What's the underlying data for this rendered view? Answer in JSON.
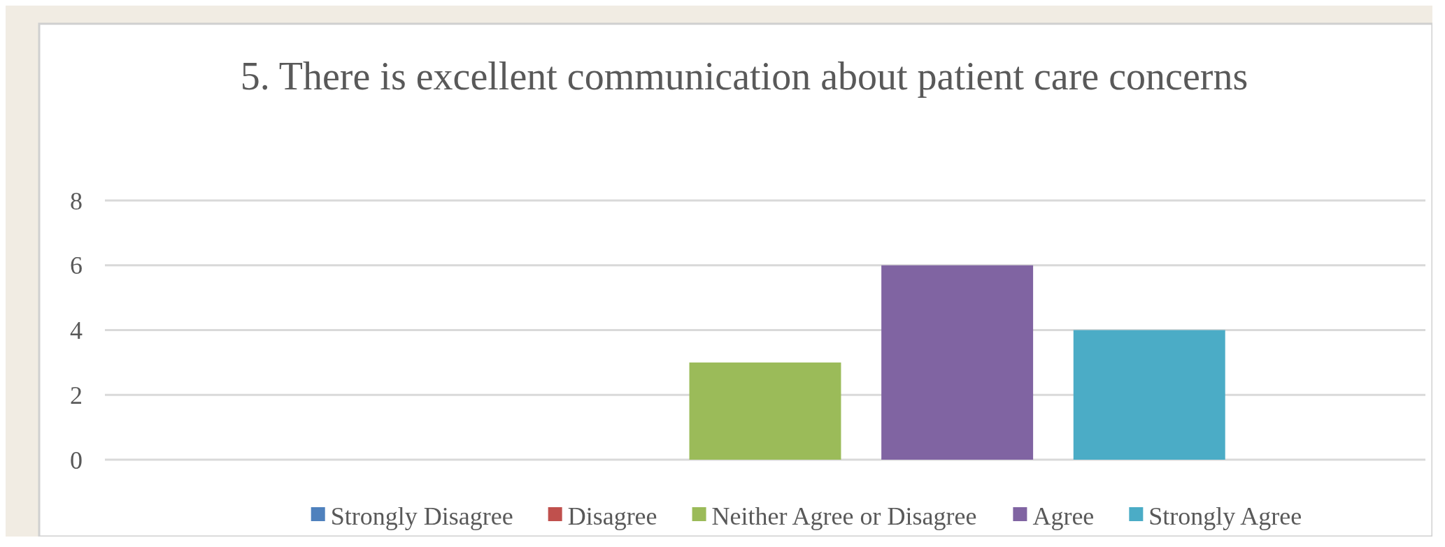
{
  "chart_data": {
    "type": "bar",
    "title": "5. There is excellent communication about patient care concerns",
    "categories": [
      null
    ],
    "series": [
      {
        "name": "Strongly Disagree",
        "color": "#4f81bd",
        "values": [
          0
        ]
      },
      {
        "name": "Disagree",
        "color": "#c0504d",
        "values": [
          0
        ]
      },
      {
        "name": "Neither Agree or Disagree",
        "color": "#9bbb59",
        "values": [
          3
        ]
      },
      {
        "name": "Agree",
        "color": "#8064a2",
        "values": [
          6
        ]
      },
      {
        "name": "Strongly Agree",
        "color": "#4bacc6",
        "values": [
          4
        ]
      }
    ],
    "ylim": [
      0,
      8
    ],
    "yticks": [
      0,
      2,
      4,
      6,
      8
    ],
    "grid": "y",
    "legend": "bottom"
  }
}
